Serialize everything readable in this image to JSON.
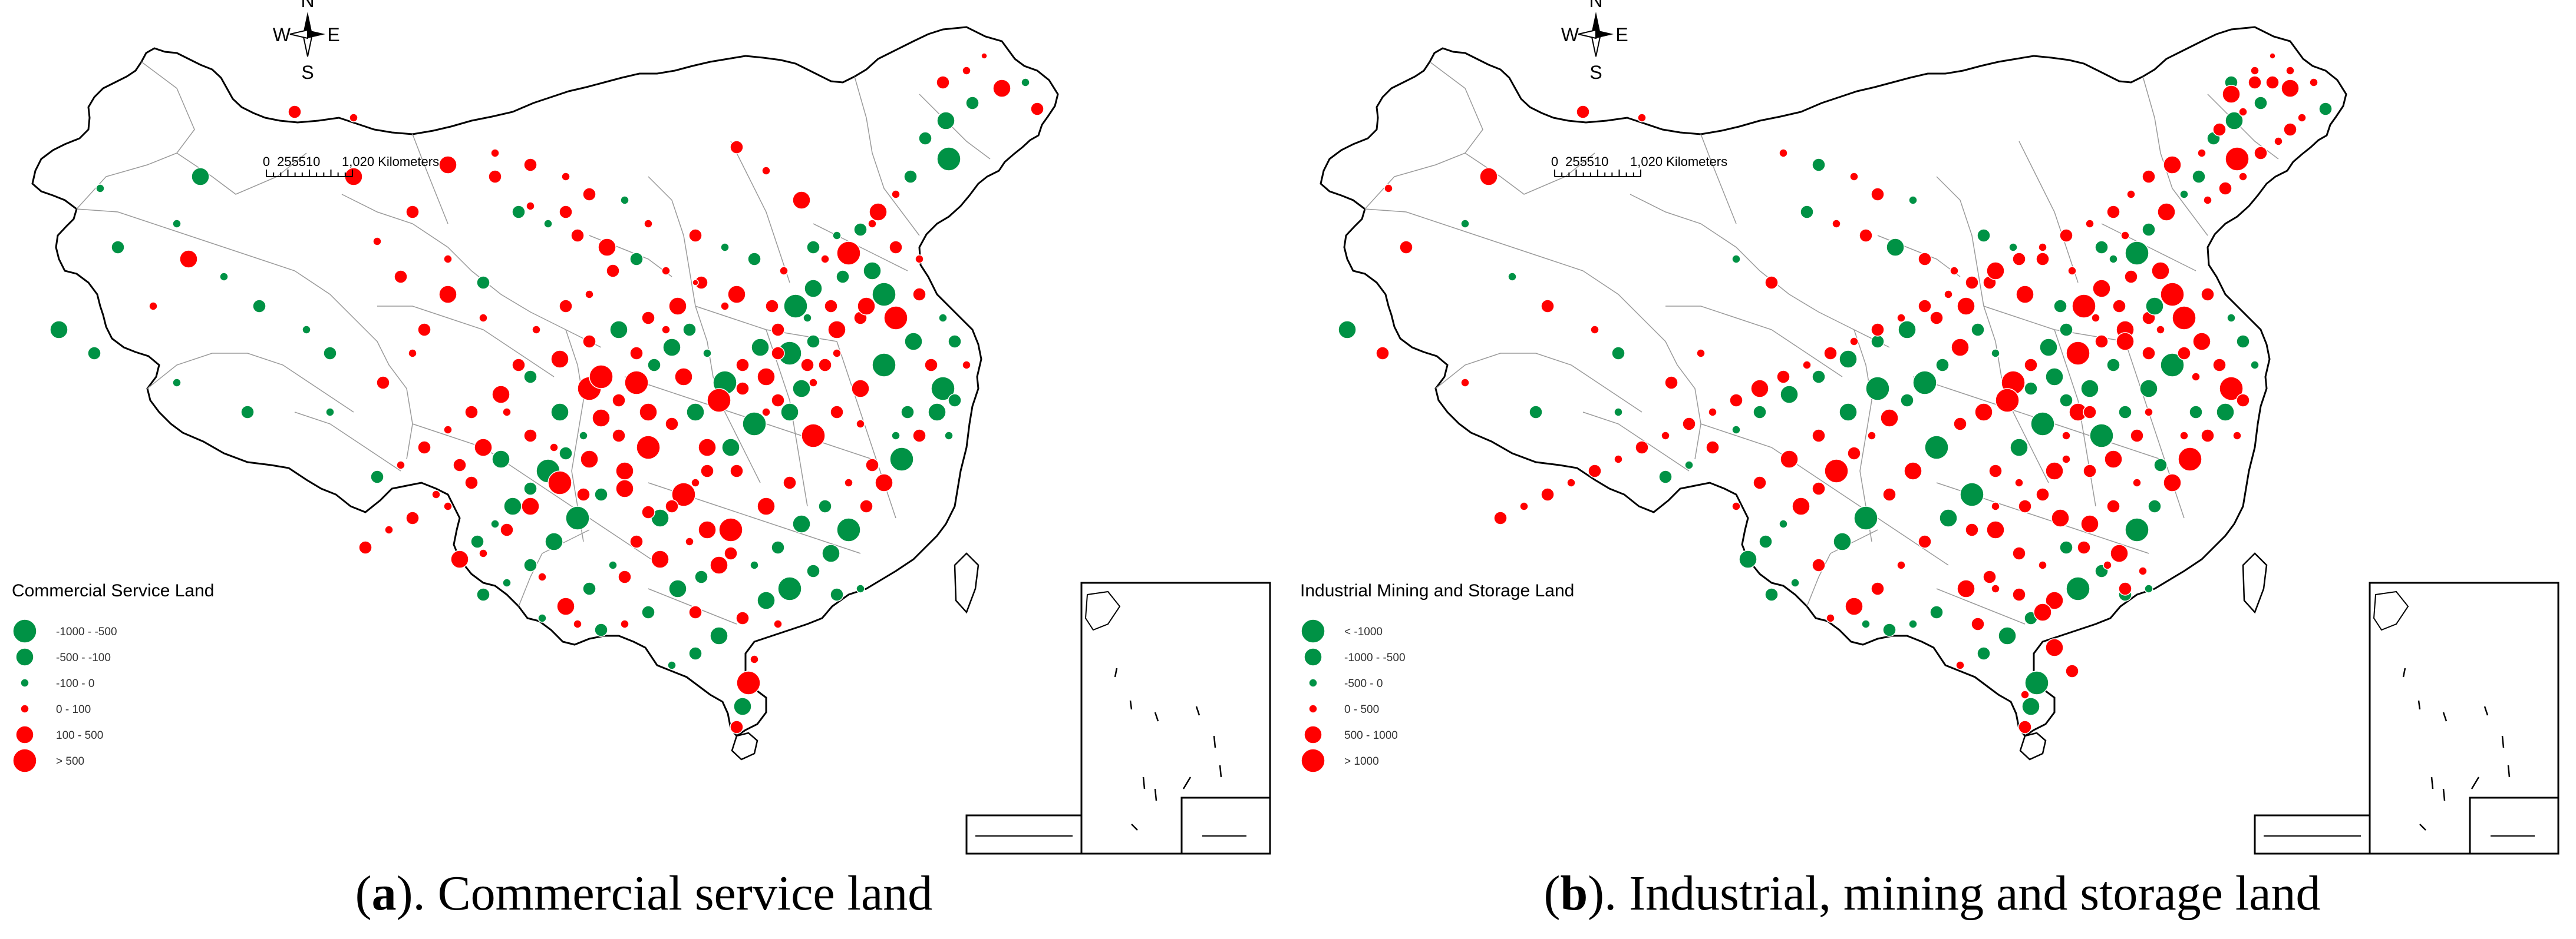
{
  "colors": {
    "decrease": "#009245",
    "increase": "#ff0000",
    "border": "#000000",
    "internal_border": "#9a9a9a"
  },
  "compass": {
    "north": "N",
    "south": "S",
    "east": "E",
    "west": "W"
  },
  "scale_bar": {
    "ticks": [
      "0",
      "255",
      "510",
      "1,020 Kilometers"
    ]
  },
  "panels": [
    {
      "id": "a",
      "caption_letter": "a",
      "caption_text": "). Commercial service land",
      "legend_title": "Commercial Service Land",
      "legend_items": [
        {
          "label": "-1000 - -500",
          "color": "decrease",
          "size": 5
        },
        {
          "label": "-500 - -100",
          "color": "decrease",
          "size": 4
        },
        {
          "label": "-100 - 0",
          "color": "decrease",
          "size": 2
        },
        {
          "label": "0 - 100",
          "color": "increase",
          "size": 2
        },
        {
          "label": "100 - 500",
          "color": "increase",
          "size": 4
        },
        {
          "label": "> 500",
          "color": "increase",
          "size": 5
        }
      ]
    },
    {
      "id": "b",
      "caption_letter": "b",
      "caption_text": "). Industrial, mining and storage land",
      "legend_title": "Industrial Mining and Storage Land",
      "legend_items": [
        {
          "label": "< -1000",
          "color": "decrease",
          "size": 5
        },
        {
          "label": "-1000 - -500",
          "color": "decrease",
          "size": 4
        },
        {
          "label": "-500 - 0",
          "color": "decrease",
          "size": 2
        },
        {
          "label": "0 - 500",
          "color": "increase",
          "size": 2
        },
        {
          "label": "500 - 1000",
          "color": "increase",
          "size": 4
        },
        {
          "label": "> 1000",
          "color": "increase",
          "size": 5
        }
      ]
    }
  ]
}
